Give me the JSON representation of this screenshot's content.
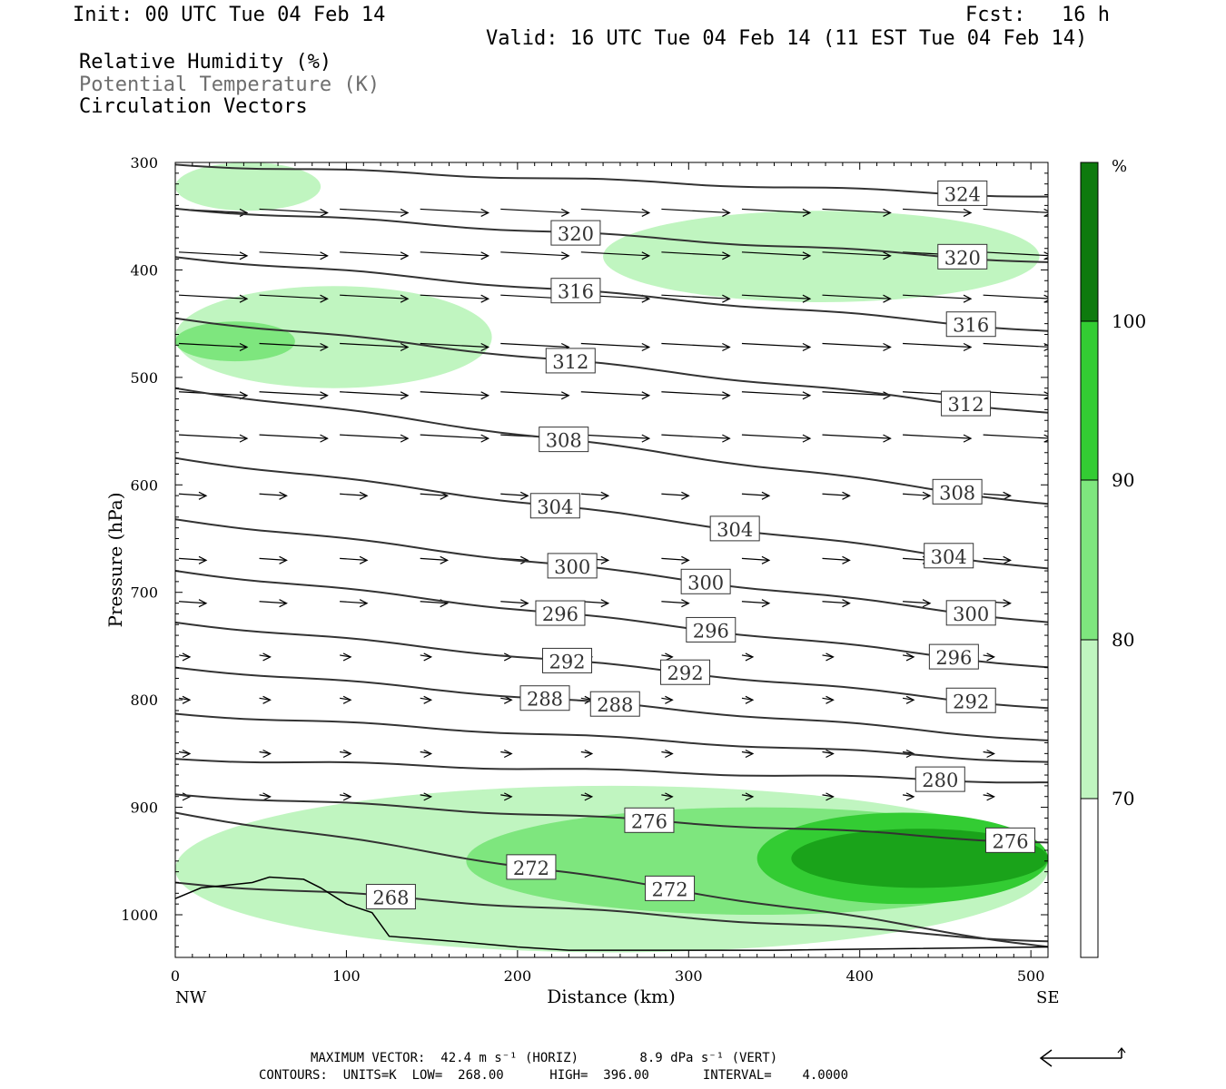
{
  "header": {
    "init": "Init: 00 UTC Tue 04 Feb 14",
    "fcst": "Fcst:   16 h",
    "valid": "Valid: 16 UTC Tue 04 Feb 14 (11 EST Tue 04 Feb 14)"
  },
  "legend": {
    "line1": "Relative Humidity (%)",
    "line2": "Potential Temperature (K)",
    "line3": "Circulation Vectors"
  },
  "colorbar": {
    "unit": "%",
    "levels": [
      "70",
      "80",
      "90",
      "100"
    ],
    "colors": [
      "#ffffff",
      "#c0f5c0",
      "#7ee67e",
      "#33cc33",
      "#1aa31a",
      "#0e7a0e"
    ]
  },
  "footer": {
    "line1": "MAXIMUM VECTOR:  42.4 m s⁻¹ (HORIZ)        8.9 dPa s⁻¹ (VERT)",
    "line2": "CONTOURS:  UNITS=K  LOW=  268.00      HIGH=  396.00       INTERVAL=    4.0000"
  },
  "chart_data": {
    "type": "cross-section contour",
    "xlabel": "Distance (km)",
    "ylabel": "Pressure (hPa)",
    "xlim": [
      0,
      510
    ],
    "ylim": [
      1035,
      300
    ],
    "x_ticks": [
      "0",
      "100",
      "200",
      "300",
      "400",
      "500"
    ],
    "y_ticks": [
      "300",
      "400",
      "500",
      "600",
      "700",
      "800",
      "900",
      "1000"
    ],
    "x_end_labels": {
      "left": "NW",
      "right": "SE"
    },
    "isentropes": [
      {
        "theta": 324,
        "p_left": 302,
        "p_right": 332,
        "labels": [
          {
            "text": "324",
            "x": 460
          }
        ]
      },
      {
        "theta": 320,
        "p_left": 343,
        "p_right": 393,
        "labels": [
          {
            "text": "320",
            "x": 234
          },
          {
            "text": "320",
            "x": 460
          }
        ]
      },
      {
        "theta": 316,
        "p_left": 388,
        "p_right": 457,
        "labels": [
          {
            "text": "316",
            "x": 234
          },
          {
            "text": "316",
            "x": 465
          }
        ]
      },
      {
        "theta": 312,
        "p_left": 445,
        "p_right": 533,
        "labels": [
          {
            "text": "312",
            "x": 231
          },
          {
            "text": "312",
            "x": 462
          }
        ]
      },
      {
        "theta": 308,
        "p_left": 510,
        "p_right": 618,
        "labels": [
          {
            "text": "308",
            "x": 227
          },
          {
            "text": "308",
            "x": 457
          }
        ]
      },
      {
        "theta": 304,
        "p_left": 575,
        "p_right": 678,
        "labels": [
          {
            "text": "304",
            "x": 222
          },
          {
            "text": "304",
            "x": 327
          },
          {
            "text": "304",
            "x": 452
          }
        ]
      },
      {
        "theta": 300,
        "p_left": 632,
        "p_right": 728,
        "labels": [
          {
            "text": "300",
            "x": 232
          },
          {
            "text": "300",
            "x": 310
          },
          {
            "text": "300",
            "x": 465
          }
        ]
      },
      {
        "theta": 296,
        "p_left": 680,
        "p_right": 770,
        "labels": [
          {
            "text": "296",
            "x": 225
          },
          {
            "text": "296",
            "x": 313
          },
          {
            "text": "296",
            "x": 455
          }
        ]
      },
      {
        "theta": 292,
        "p_left": 728,
        "p_right": 808,
        "labels": [
          {
            "text": "292",
            "x": 229
          },
          {
            "text": "292",
            "x": 298
          },
          {
            "text": "292",
            "x": 465
          }
        ]
      },
      {
        "theta": 288,
        "p_left": 770,
        "p_right": 838,
        "labels": [
          {
            "text": "288",
            "x": 216
          },
          {
            "text": "288",
            "x": 257
          }
        ]
      },
      {
        "theta": 284,
        "p_left": 813,
        "p_right": 858,
        "labels": []
      },
      {
        "theta": 280,
        "p_left": 855,
        "p_right": 877,
        "labels": [
          {
            "text": "280",
            "x": 447
          }
        ]
      },
      {
        "theta": 276,
        "p_left": 888,
        "p_right": 933,
        "labels": [
          {
            "text": "276",
            "x": 277
          },
          {
            "text": "276",
            "x": 488
          }
        ]
      },
      {
        "theta": 272,
        "p_left": 905,
        "p_right": 1030,
        "labels": [
          {
            "text": "272",
            "x": 208
          },
          {
            "text": "272",
            "x": 289
          }
        ]
      },
      {
        "theta": 268,
        "p_left": 970,
        "p_right": 1025,
        "labels": [
          {
            "text": "268",
            "x": 126
          }
        ]
      }
    ],
    "rh_regions": [
      {
        "level": 70,
        "x": [
          0,
          85
        ],
        "p": [
          300,
          345
        ]
      },
      {
        "level": 70,
        "x": [
          250,
          505
        ],
        "p": [
          345,
          430
        ]
      },
      {
        "level": 70,
        "x": [
          0,
          185
        ],
        "p": [
          415,
          510
        ]
      },
      {
        "level": 80,
        "x": [
          0,
          70
        ],
        "p": [
          448,
          485
        ]
      },
      {
        "level": 70,
        "x": [
          0,
          510
        ],
        "p": [
          880,
          1035
        ]
      },
      {
        "level": 80,
        "x": [
          170,
          510
        ],
        "p": [
          900,
          1000
        ]
      },
      {
        "level": 90,
        "x": [
          340,
          510
        ],
        "p": [
          905,
          990
        ]
      },
      {
        "level": 100,
        "x": [
          360,
          510
        ],
        "p": [
          920,
          975
        ]
      }
    ],
    "max_vector": {
      "horiz": "42.4 m s-1",
      "vert": "8.9 dPa s-1"
    },
    "contours": {
      "units": "K",
      "low": 268.0,
      "high": 396.0,
      "interval": 4.0
    }
  }
}
